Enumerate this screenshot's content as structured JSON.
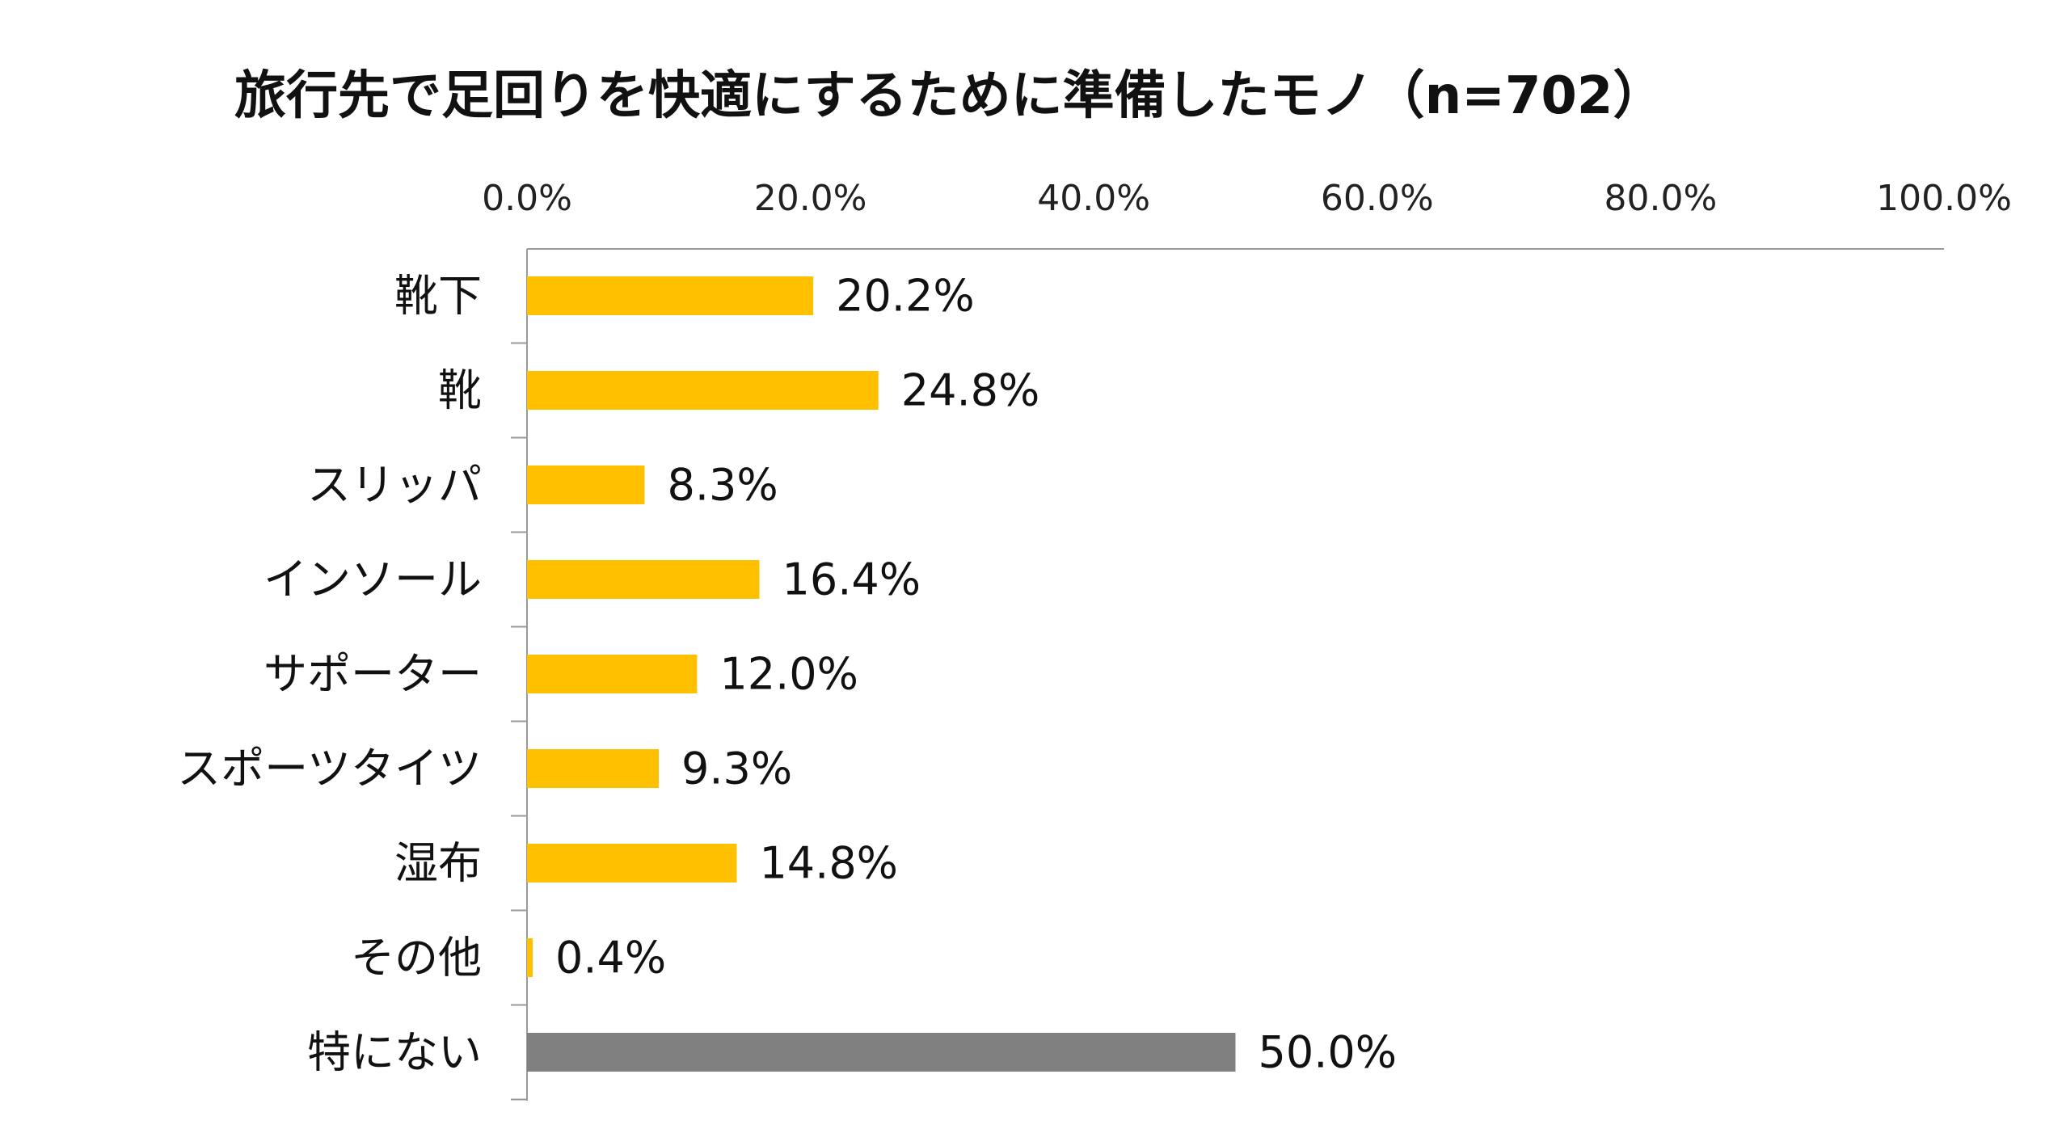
{
  "chart_data": {
    "type": "bar",
    "orientation": "horizontal",
    "title": "旅行先で足回りを快適にするために準備したモノ（n=702）",
    "xlabel": "",
    "ylabel": "",
    "xlim": [
      0,
      100
    ],
    "x_ticks": [
      "0.0%",
      "20.0%",
      "40.0%",
      "60.0%",
      "80.0%",
      "100.0%"
    ],
    "x_axis_position": "top",
    "grid": false,
    "legend": "none",
    "categories": [
      "靴下",
      "靴",
      "スリッパ",
      "インソール",
      "サポーター",
      "スポーツタイツ",
      "湿布",
      "その他",
      "特にない"
    ],
    "values": [
      20.2,
      24.8,
      8.3,
      16.4,
      12.0,
      9.3,
      14.8,
      0.4,
      50.0
    ],
    "value_labels": [
      "20.2%",
      "24.8%",
      "8.3%",
      "16.4%",
      "12.0%",
      "9.3%",
      "14.8%",
      "0.4%",
      "50.0%"
    ],
    "colors": {
      "bar": "#FFC000",
      "highlight_bar": "#808080",
      "axis": "#9a9a9a",
      "text": "#111111"
    },
    "highlight_category": "特にない"
  }
}
